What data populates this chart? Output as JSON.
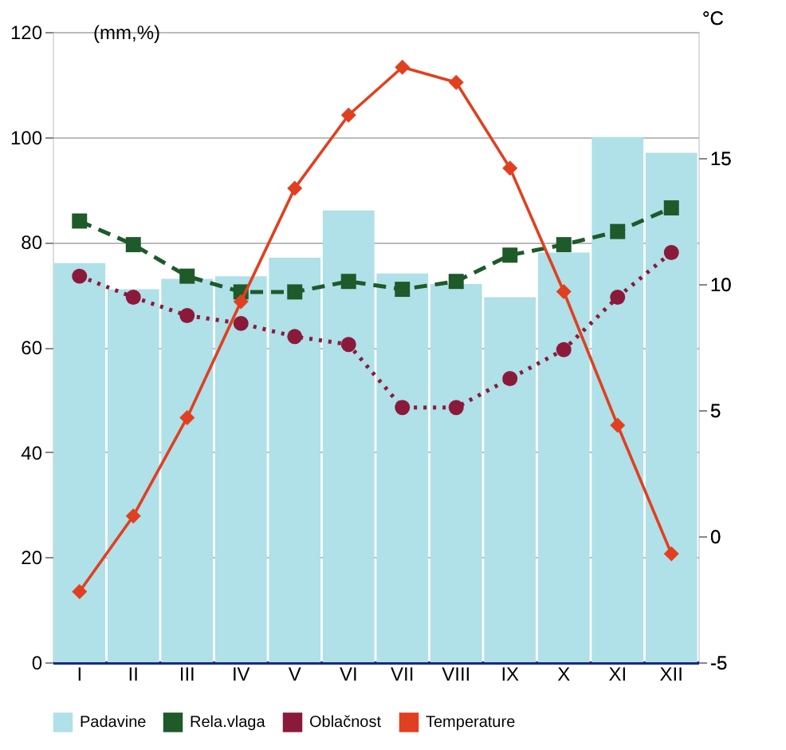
{
  "chart_data": {
    "type": "bar",
    "categories": [
      "I",
      "II",
      "III",
      "IV",
      "V",
      "VI",
      "VII",
      "VIII",
      "IX",
      "X",
      "XI",
      "XII"
    ],
    "series": [
      {
        "name": "Padavine",
        "color": "#b0e0e8",
        "values": [
          76,
          71,
          73,
          73.5,
          77,
          86,
          74,
          72,
          69.5,
          78,
          100,
          97
        ]
      },
      {
        "name": "Rela.vlaga",
        "type": "line",
        "color": "#1e5a2a",
        "marker": "square",
        "line_style": "dashed",
        "values": [
          84,
          79.5,
          73.5,
          70.5,
          70.5,
          72.5,
          71,
          72.5,
          77.5,
          79.5,
          82,
          86.5
        ]
      },
      {
        "name": "Oblačnost",
        "type": "line",
        "color": "#8b1a3a",
        "marker": "circle",
        "line_style": "dotted",
        "values": [
          73.5,
          69.5,
          66,
          64.5,
          62,
          60.5,
          48.5,
          48.5,
          54,
          59.5,
          69.5,
          78
        ]
      },
      {
        "name": "Temperature",
        "type": "line",
        "color": "#e04020",
        "marker": "diamond",
        "line_style": "solid",
        "axis": "y2",
        "values": [
          -2.2,
          0.8,
          4.7,
          9.3,
          13.8,
          16.7,
          18.6,
          18.0,
          14.6,
          9.7,
          4.4,
          -0.7
        ]
      }
    ],
    "ylabel": "(mm,%)",
    "ylim": [
      0,
      120
    ],
    "yticks": [
      0,
      20,
      40,
      60,
      80,
      100,
      120
    ],
    "y2label": "°C",
    "y2lim": [
      -5,
      20
    ],
    "y2ticks": [
      -5,
      0,
      5,
      10,
      15
    ],
    "grid": "y",
    "legend": "bottom"
  }
}
